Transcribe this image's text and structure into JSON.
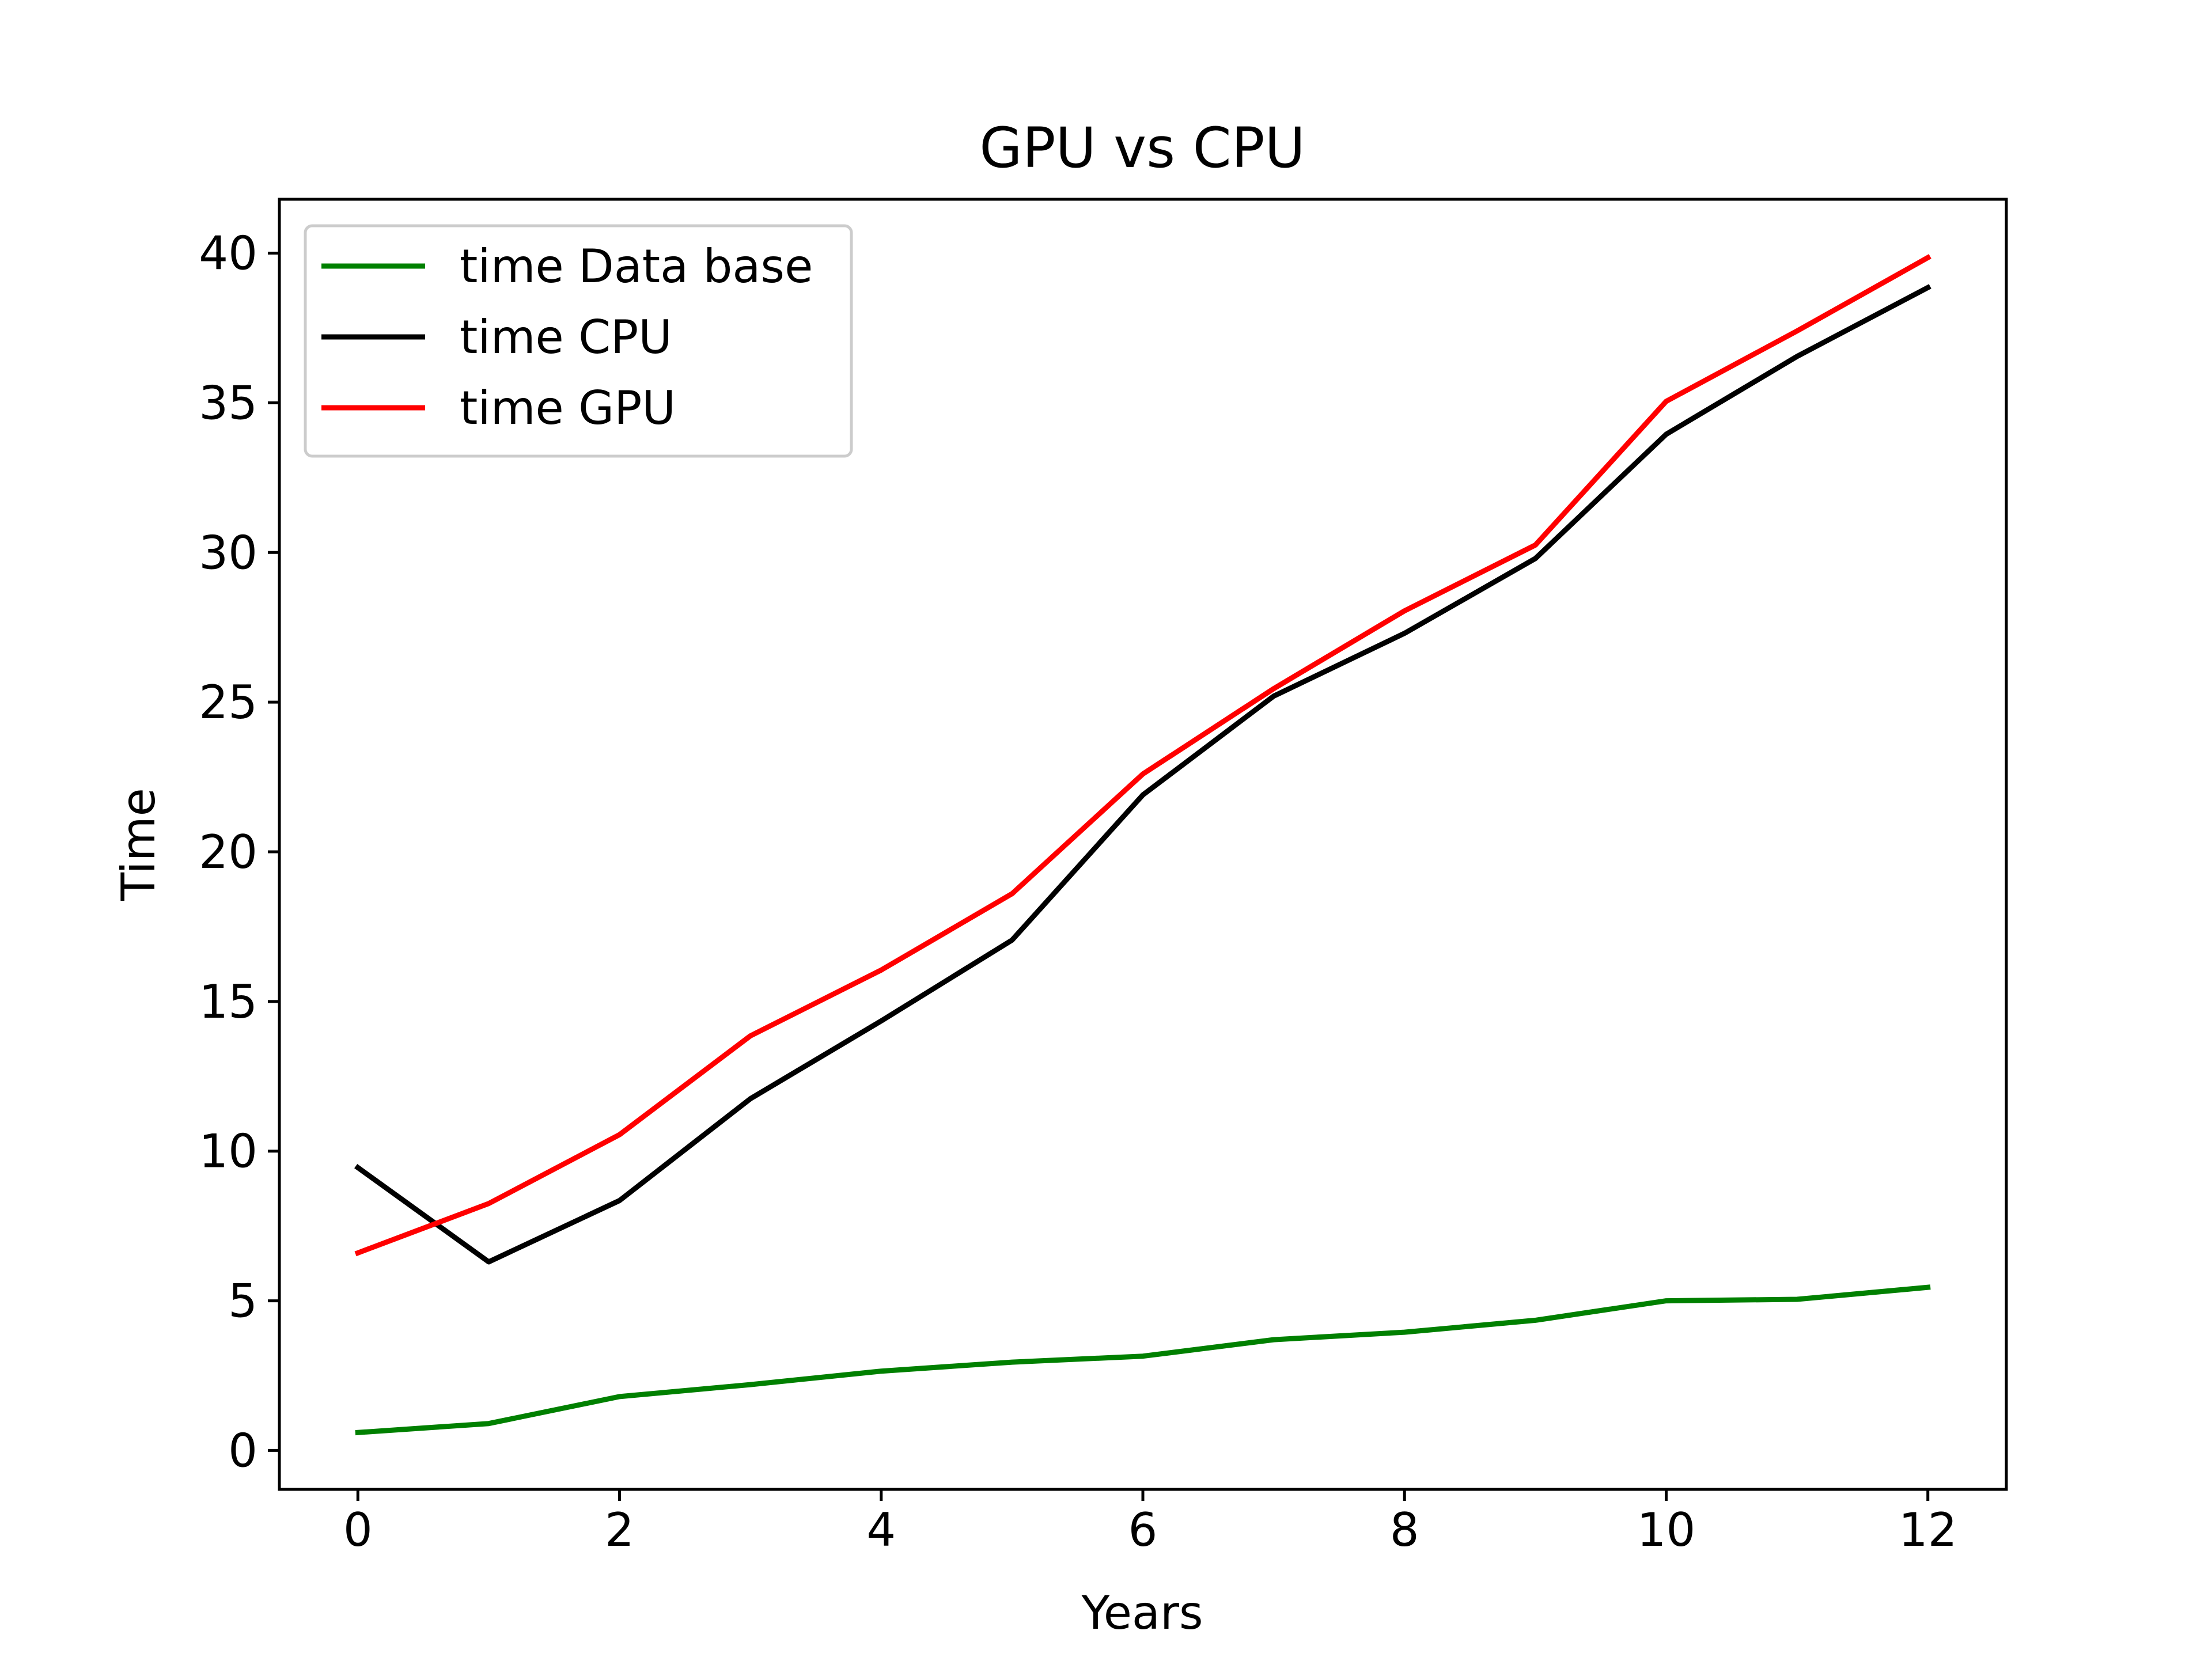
{
  "chart_data": {
    "type": "line",
    "title": "GPU vs CPU",
    "xlabel": "Years",
    "ylabel": "Time",
    "xlim": [
      -0.6,
      12.6
    ],
    "ylim": [
      -1.3,
      41.8
    ],
    "xticks": [
      0,
      2,
      4,
      6,
      8,
      10,
      12
    ],
    "yticks": [
      0,
      5,
      10,
      15,
      20,
      25,
      30,
      35,
      40
    ],
    "grid": false,
    "legend_position": "upper-left",
    "x": [
      0,
      1,
      2,
      3,
      4,
      5,
      6,
      7,
      8,
      9,
      10,
      11,
      12
    ],
    "series": [
      {
        "name": "time Data base",
        "color": "#008000",
        "values": [
          0.6,
          0.9,
          1.8,
          2.2,
          2.65,
          2.95,
          3.15,
          3.7,
          3.95,
          4.35,
          5.0,
          5.05,
          5.45
        ]
      },
      {
        "name": "time CPU",
        "color": "#000000",
        "values": [
          9.45,
          6.3,
          8.35,
          11.75,
          14.35,
          17.05,
          21.9,
          25.2,
          27.3,
          29.8,
          33.95,
          36.55,
          38.85
        ]
      },
      {
        "name": "time GPU",
        "color": "#ff0000",
        "values": [
          6.6,
          8.25,
          10.55,
          13.85,
          16.05,
          18.6,
          22.6,
          25.45,
          28.05,
          30.25,
          35.05,
          37.4,
          39.85
        ]
      }
    ]
  }
}
